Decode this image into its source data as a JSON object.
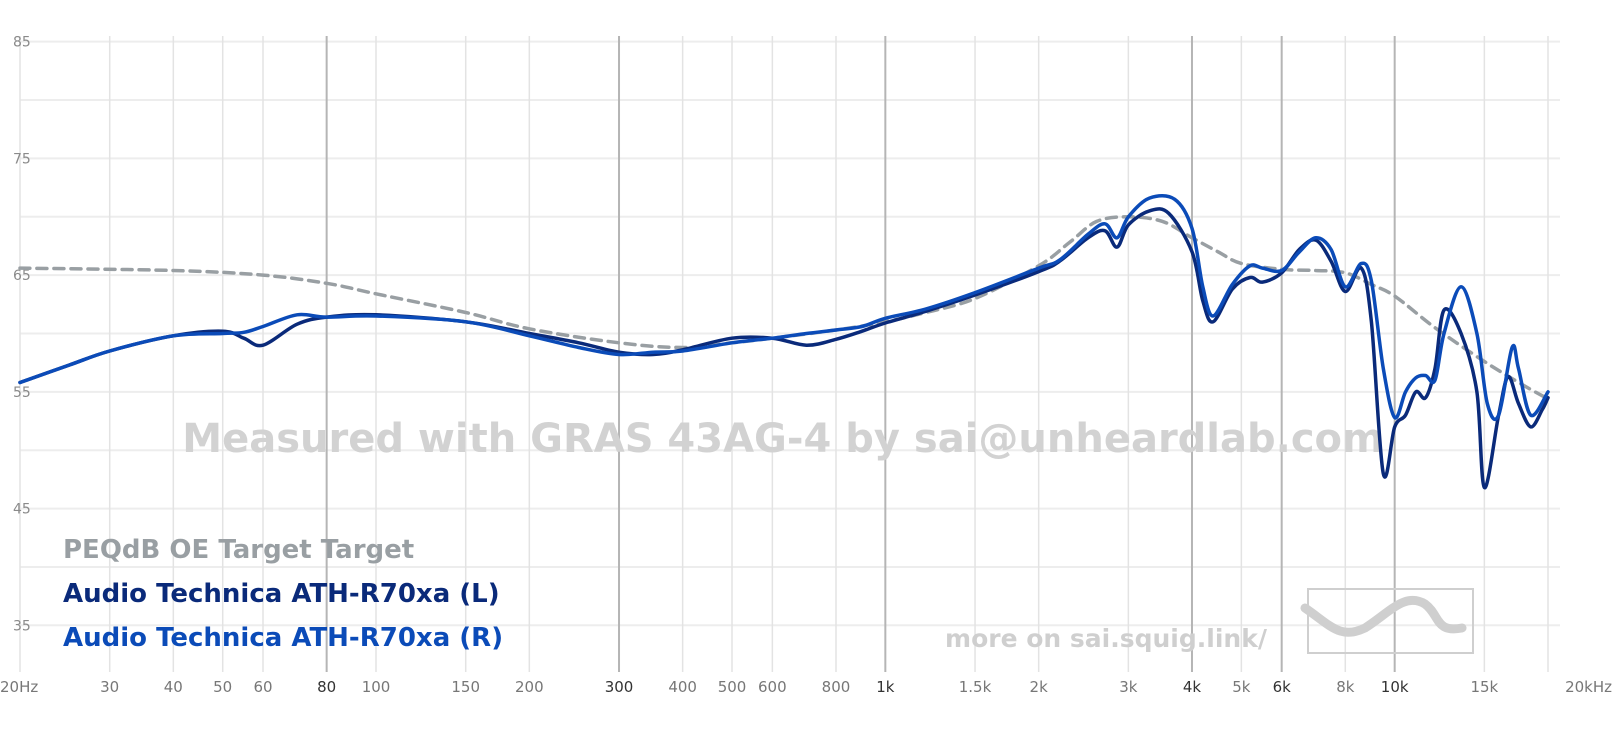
{
  "colors": {
    "target": "#999fa3",
    "left": "#0a2a7a",
    "right": "#0b4bb8",
    "grid": "#e3e3e3",
    "grid_major": "#b5b5b5",
    "watermark": "#d2d2d2"
  },
  "watermark": "Measured with GRAS 43AG-4 by sai@unheardlab.com",
  "footer": "more on sai.squig.link/",
  "legend": [
    {
      "label": "PEQdB OE Target Target",
      "color": "#999fa3"
    },
    {
      "label": "Audio Technica ATH-R70xa (L)",
      "color": "#0a2a7a"
    },
    {
      "label": "Audio Technica ATH-R70xa (R)",
      "color": "#0b4bb8"
    }
  ],
  "chart_data": {
    "type": "line",
    "x_scale": "log",
    "xlim": [
      20,
      20000
    ],
    "ylim": [
      31,
      86
    ],
    "grid": true,
    "yticks": [
      85,
      75,
      65,
      55,
      45,
      35
    ],
    "yticks_minor": [
      80,
      70,
      60,
      50,
      40
    ],
    "xticks": [
      {
        "v": 20,
        "label": "20Hz"
      },
      {
        "v": 30,
        "label": "30"
      },
      {
        "v": 40,
        "label": "40"
      },
      {
        "v": 50,
        "label": "50"
      },
      {
        "v": 60,
        "label": "60"
      },
      {
        "v": 80,
        "label": "80"
      },
      {
        "v": 100,
        "label": "100"
      },
      {
        "v": 150,
        "label": "150"
      },
      {
        "v": 200,
        "label": "200"
      },
      {
        "v": 300,
        "label": "300"
      },
      {
        "v": 400,
        "label": "400"
      },
      {
        "v": 500,
        "label": "500"
      },
      {
        "v": 600,
        "label": "600"
      },
      {
        "v": 800,
        "label": "800"
      },
      {
        "v": 1000,
        "label": "1k"
      },
      {
        "v": 1500,
        "label": "1.5k"
      },
      {
        "v": 2000,
        "label": "2k"
      },
      {
        "v": 3000,
        "label": "3k"
      },
      {
        "v": 4000,
        "label": "4k"
      },
      {
        "v": 5000,
        "label": "5k"
      },
      {
        "v": 6000,
        "label": "6k"
      },
      {
        "v": 8000,
        "label": "8k"
      },
      {
        "v": 10000,
        "label": "10k"
      },
      {
        "v": 15000,
        "label": "15k"
      },
      {
        "v": 20000,
        "label": "20kHz"
      }
    ],
    "major_x": [
      80,
      300,
      1000,
      4000,
      6000,
      10000
    ],
    "series": [
      {
        "name": "PEQdB OE Target Target",
        "dashed": true,
        "points": [
          [
            20,
            65.6
          ],
          [
            40,
            65.4
          ],
          [
            60,
            65.0
          ],
          [
            80,
            64.3
          ],
          [
            100,
            63.4
          ],
          [
            150,
            61.8
          ],
          [
            200,
            60.4
          ],
          [
            300,
            59.2
          ],
          [
            400,
            58.8
          ],
          [
            500,
            59.2
          ],
          [
            600,
            59.6
          ],
          [
            800,
            60.3
          ],
          [
            1000,
            61.0
          ],
          [
            1200,
            61.8
          ],
          [
            1500,
            63.0
          ],
          [
            2000,
            65.8
          ],
          [
            2300,
            67.8
          ],
          [
            2600,
            69.6
          ],
          [
            3000,
            70.0
          ],
          [
            3500,
            69.6
          ],
          [
            4000,
            68.2
          ],
          [
            4500,
            67.0
          ],
          [
            5000,
            66.0
          ],
          [
            6000,
            65.5
          ],
          [
            7000,
            65.4
          ],
          [
            8000,
            65.2
          ],
          [
            9000,
            64.2
          ],
          [
            10000,
            63.2
          ],
          [
            12000,
            60.5
          ],
          [
            15000,
            57.6
          ],
          [
            18000,
            55.5
          ],
          [
            20000,
            54.4
          ]
        ]
      },
      {
        "name": "Audio Technica ATH-R70xa (L)",
        "points": [
          [
            20,
            55.8
          ],
          [
            25,
            57.3
          ],
          [
            30,
            58.5
          ],
          [
            40,
            59.8
          ],
          [
            50,
            60.2
          ],
          [
            55,
            59.6
          ],
          [
            60,
            59.0
          ],
          [
            70,
            60.8
          ],
          [
            80,
            61.4
          ],
          [
            100,
            61.6
          ],
          [
            150,
            61.0
          ],
          [
            200,
            60.0
          ],
          [
            250,
            59.2
          ],
          [
            300,
            58.4
          ],
          [
            350,
            58.2
          ],
          [
            400,
            58.6
          ],
          [
            500,
            59.6
          ],
          [
            600,
            59.6
          ],
          [
            700,
            59.0
          ],
          [
            800,
            59.5
          ],
          [
            900,
            60.2
          ],
          [
            1000,
            60.9
          ],
          [
            1200,
            61.9
          ],
          [
            1500,
            63.3
          ],
          [
            2000,
            65.3
          ],
          [
            2200,
            66.2
          ],
          [
            2500,
            68.2
          ],
          [
            2700,
            68.8
          ],
          [
            2850,
            67.4
          ],
          [
            3000,
            69.3
          ],
          [
            3300,
            70.5
          ],
          [
            3600,
            70.3
          ],
          [
            4000,
            67.0
          ],
          [
            4200,
            62.8
          ],
          [
            4400,
            61.0
          ],
          [
            4800,
            63.8
          ],
          [
            5200,
            64.8
          ],
          [
            5500,
            64.4
          ],
          [
            6000,
            65.2
          ],
          [
            6500,
            67.2
          ],
          [
            7000,
            68.0
          ],
          [
            7500,
            66.2
          ],
          [
            8000,
            63.6
          ],
          [
            8600,
            65.6
          ],
          [
            9000,
            61.0
          ],
          [
            9500,
            48.0
          ],
          [
            10000,
            52.0
          ],
          [
            10500,
            53.0
          ],
          [
            11000,
            55.0
          ],
          [
            11500,
            54.5
          ],
          [
            12000,
            57.0
          ],
          [
            12500,
            62.0
          ],
          [
            13500,
            60.0
          ],
          [
            14500,
            55.0
          ],
          [
            15000,
            46.8
          ],
          [
            16000,
            53.0
          ],
          [
            16700,
            56.3
          ],
          [
            17500,
            54.0
          ],
          [
            18500,
            52.0
          ],
          [
            19500,
            53.5
          ],
          [
            20000,
            54.5
          ]
        ]
      },
      {
        "name": "Audio Technica ATH-R70xa (R)",
        "points": [
          [
            20,
            55.8
          ],
          [
            25,
            57.3
          ],
          [
            30,
            58.5
          ],
          [
            40,
            59.8
          ],
          [
            50,
            60.0
          ],
          [
            55,
            60.1
          ],
          [
            60,
            60.6
          ],
          [
            70,
            61.6
          ],
          [
            80,
            61.4
          ],
          [
            100,
            61.5
          ],
          [
            150,
            61.0
          ],
          [
            200,
            59.8
          ],
          [
            250,
            58.8
          ],
          [
            300,
            58.2
          ],
          [
            350,
            58.4
          ],
          [
            400,
            58.5
          ],
          [
            500,
            59.2
          ],
          [
            600,
            59.6
          ],
          [
            700,
            60.0
          ],
          [
            800,
            60.3
          ],
          [
            900,
            60.6
          ],
          [
            1000,
            61.3
          ],
          [
            1200,
            62.1
          ],
          [
            1500,
            63.5
          ],
          [
            2000,
            65.6
          ],
          [
            2200,
            66.3
          ],
          [
            2500,
            68.5
          ],
          [
            2700,
            69.4
          ],
          [
            2850,
            68.2
          ],
          [
            3000,
            70.0
          ],
          [
            3300,
            71.6
          ],
          [
            3700,
            71.5
          ],
          [
            4000,
            69.0
          ],
          [
            4200,
            64.0
          ],
          [
            4400,
            61.5
          ],
          [
            4800,
            64.2
          ],
          [
            5200,
            65.8
          ],
          [
            5500,
            65.6
          ],
          [
            6000,
            65.4
          ],
          [
            6500,
            67.0
          ],
          [
            7000,
            68.2
          ],
          [
            7500,
            67.2
          ],
          [
            8000,
            64.0
          ],
          [
            8600,
            66.0
          ],
          [
            9000,
            64.5
          ],
          [
            9500,
            57.0
          ],
          [
            10000,
            52.8
          ],
          [
            10500,
            55.0
          ],
          [
            11000,
            56.2
          ],
          [
            11500,
            56.4
          ],
          [
            12000,
            56.0
          ],
          [
            12500,
            60.0
          ],
          [
            13500,
            64.0
          ],
          [
            14500,
            60.0
          ],
          [
            15200,
            54.0
          ],
          [
            16000,
            53.0
          ],
          [
            17000,
            58.8
          ],
          [
            17500,
            57.0
          ],
          [
            18500,
            53.0
          ],
          [
            20000,
            55.0
          ]
        ]
      }
    ]
  }
}
